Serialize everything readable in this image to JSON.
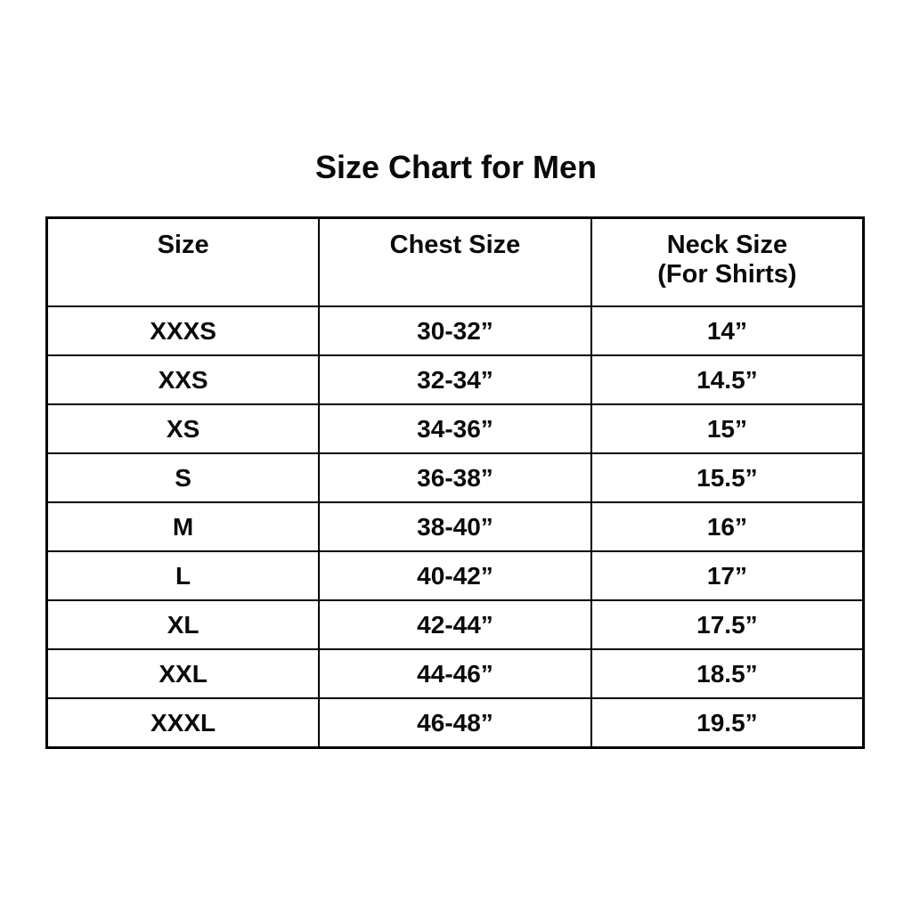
{
  "chart_data": {
    "type": "table",
    "title": "Size Chart for Men",
    "columns": [
      "Size",
      "Chest Size",
      "Neck Size (For Shirts)"
    ],
    "header": {
      "size": "Size",
      "chest": "Chest Size",
      "neck_line1": "Neck Size",
      "neck_line2": "(For Shirts)"
    },
    "rows": [
      {
        "size": "XXXS",
        "chest": "30-32”",
        "neck": "14”"
      },
      {
        "size": "XXS",
        "chest": "32-34”",
        "neck": "14.5”"
      },
      {
        "size": "XS",
        "chest": "34-36”",
        "neck": "15”"
      },
      {
        "size": "S",
        "chest": "36-38”",
        "neck": "15.5”"
      },
      {
        "size": "M",
        "chest": "38-40”",
        "neck": "16”"
      },
      {
        "size": "L",
        "chest": "40-42”",
        "neck": "17”"
      },
      {
        "size": "XL",
        "chest": "42-44”",
        "neck": "17.5”"
      },
      {
        "size": "XXL",
        "chest": "44-46”",
        "neck": "18.5”"
      },
      {
        "size": "XXXL",
        "chest": "46-48”",
        "neck": "19.5”"
      }
    ],
    "layout": {
      "grid": "on",
      "legend": "none"
    },
    "colors": {
      "background": "#ffffff",
      "border": "#000000",
      "text": "#0a0a0a"
    }
  }
}
